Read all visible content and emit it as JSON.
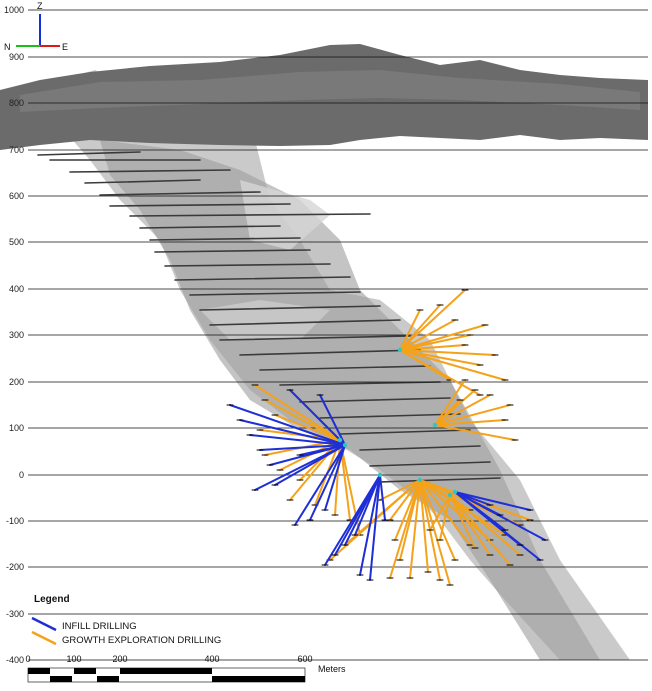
{
  "elevation_labels": [
    "1000",
    "900",
    "800",
    "700",
    "600",
    "500",
    "400",
    "300",
    "200",
    "100",
    "0",
    "-100",
    "-200",
    "-300",
    "-400"
  ],
  "orientation": {
    "up": "Z",
    "left": "N",
    "right": "E"
  },
  "legend": {
    "title": "Legend",
    "items": [
      {
        "label": "INFILL DRILLING",
        "color": "#1f2fd6"
      },
      {
        "label": "GROWTH EXPLORATION DRILLING",
        "color": "#f5a21b"
      }
    ]
  },
  "scale_bar": {
    "ticks": [
      "0",
      "100",
      "200",
      "400",
      "600"
    ],
    "unit": "Meters"
  },
  "colors": {
    "infill": "#1f2fd6",
    "growth": "#f5a21b",
    "surface": "#6e6e6e",
    "orebody": "#a9a9a9",
    "historic_workings": "#3a3a3a"
  }
}
